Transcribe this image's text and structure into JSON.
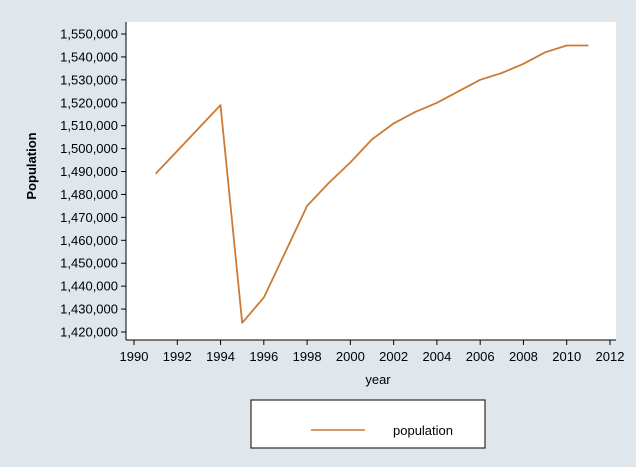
{
  "chart_data": {
    "type": "line",
    "title": "",
    "xlabel": "year",
    "ylabel": "Population",
    "xlim": [
      1990,
      2012
    ],
    "ylim": [
      1420000,
      1550000
    ],
    "xticks": [
      1990,
      1992,
      1994,
      1996,
      1998,
      2000,
      2002,
      2004,
      2006,
      2008,
      2010,
      2012
    ],
    "yticks": [
      1420000,
      1430000,
      1440000,
      1450000,
      1460000,
      1470000,
      1480000,
      1490000,
      1500000,
      1510000,
      1520000,
      1530000,
      1540000,
      1550000
    ],
    "xtick_labels": [
      "1990",
      "1992",
      "1994",
      "1996",
      "1998",
      "2000",
      "2002",
      "2004",
      "2006",
      "2008",
      "2010",
      "2012"
    ],
    "ytick_labels": [
      "1,420,000",
      "1,430,000",
      "1,440,000",
      "1,450,000",
      "1,460,000",
      "1,470,000",
      "1,480,000",
      "1,490,000",
      "1,500,000",
      "1,510,000",
      "1,520,000",
      "1,530,000",
      "1,540,000",
      "1,550,000"
    ],
    "grid": false,
    "legend_position": "bottom",
    "series": [
      {
        "name": "population",
        "color": "#cc7a33",
        "x": [
          1991,
          1992,
          1993,
          1994,
          1995,
          1996,
          1997,
          1998,
          1999,
          2000,
          2001,
          2002,
          2003,
          2004,
          2005,
          2006,
          2007,
          2008,
          2009,
          2010,
          2011
        ],
        "y": [
          1489000,
          1499000,
          1509000,
          1519000,
          1424000,
          1435000,
          1455000,
          1475000,
          1485000,
          1494000,
          1504000,
          1511000,
          1516000,
          1520000,
          1525000,
          1530000,
          1533000,
          1537000,
          1542000,
          1545000,
          1545000
        ]
      }
    ]
  },
  "colors": {
    "outer_background": "#dfe7ec",
    "plot_background": "#ffffff",
    "axis": "#000000"
  }
}
